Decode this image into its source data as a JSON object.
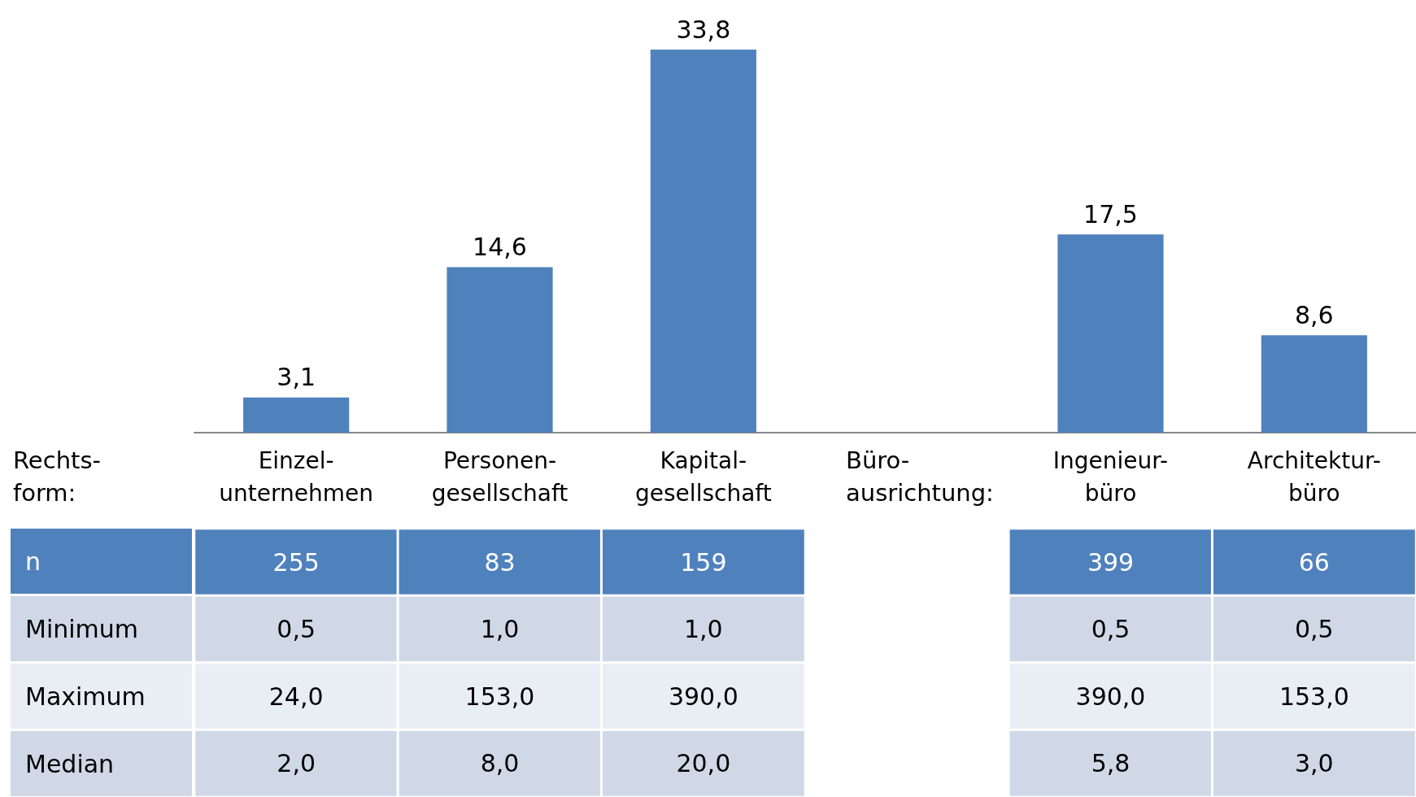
{
  "chart_data": [
    {
      "type": "bar",
      "categories": [
        "Einzel-\nunternehmen",
        "Personen-\ngesellschaft",
        "Kapital-\ngesellschaft",
        null,
        "Ingenieur-\nbüro",
        "Architektur-\nbüro"
      ],
      "values": [
        3.1,
        14.6,
        33.8,
        null,
        17.5,
        8.6
      ],
      "value_labels": [
        "3,1",
        "14,6",
        "33,8",
        null,
        "17,5",
        "8,6"
      ],
      "color": "#4f81bd",
      "annotations": [
        "Rechts-\nform:",
        "Büro-\nausrichtung:"
      ]
    },
    {
      "type": "heatmap",
      "categories": [
        null,
        null,
        null,
        null,
        null,
        null
      ],
      "y_categories": [
        "n",
        "Minimum",
        "Maximum",
        "Median"
      ],
      "cells": [
        [
          255,
          83,
          159,
          null,
          399,
          66
        ],
        [
          0.5,
          1.0,
          1.0,
          null,
          0.5,
          0.5
        ],
        [
          24.0,
          153.0,
          390.0,
          null,
          390.0,
          153.0
        ],
        [
          2.0,
          8.0,
          20.0,
          null,
          5.8,
          3.0
        ]
      ],
      "cell_labels": [
        [
          "255",
          "83",
          "159",
          null,
          "399",
          "66"
        ],
        [
          "0,5",
          "1,0",
          "1,0",
          null,
          "0,5",
          "0,5"
        ],
        [
          "24,0",
          "153,0",
          "390,0",
          null,
          "390,0",
          "153,0"
        ],
        [
          "2,0",
          "8,0",
          "20,0",
          null,
          "5,8",
          "3,0"
        ]
      ]
    }
  ]
}
